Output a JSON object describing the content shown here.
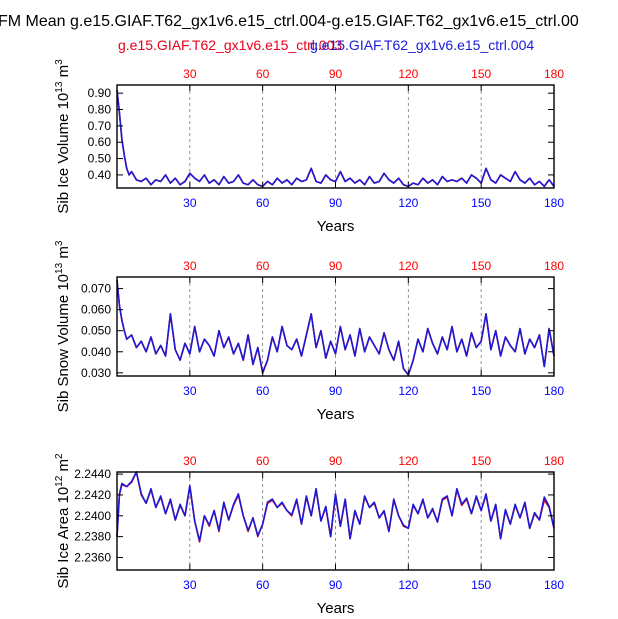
{
  "title": "FM Mean g.e15.GIAF.T62_gx1v6.e15_ctrl.004-g.e15.GIAF.T62_gx1v6.e15_ctrl.00",
  "legend": {
    "series_a": "g.e15.GIAF.T62_gx1v6.e15_ctrl.003",
    "series_b": "g.e15.GIAF.T62_gx1v6.e15_ctrl.004"
  },
  "colors": {
    "series_a": "#e8001c",
    "series_b": "#1b1bd6",
    "top_ticks": "#ff0000",
    "bottom_ticks": "#0000ff"
  },
  "chart_data": [
    {
      "type": "line",
      "title": "",
      "xlabel": "Years",
      "ylabel_prefix": "Sib Ice Volume 10",
      "ylabel_exp": "13",
      "ylabel_unit": " m",
      "ylabel_unit_exp": "3",
      "xlim": [
        0,
        180
      ],
      "ylim": [
        0.32,
        0.95
      ],
      "xticks": [
        30,
        60,
        90,
        120,
        150,
        180
      ],
      "yticks": [
        0.4,
        0.5,
        0.6,
        0.7,
        0.8,
        0.9
      ],
      "ytick_labels": [
        "0.40",
        "0.50",
        "0.60",
        "0.70",
        "0.80",
        "0.90"
      ],
      "x": [
        0,
        1,
        2,
        3,
        4,
        5,
        6,
        8,
        10,
        12,
        14,
        16,
        18,
        20,
        22,
        24,
        26,
        28,
        30,
        32,
        34,
        36,
        38,
        40,
        42,
        44,
        46,
        48,
        50,
        52,
        54,
        56,
        58,
        60,
        62,
        64,
        66,
        68,
        70,
        72,
        74,
        76,
        78,
        80,
        82,
        84,
        86,
        88,
        90,
        92,
        94,
        96,
        98,
        100,
        102,
        104,
        106,
        108,
        110,
        112,
        114,
        116,
        118,
        120,
        122,
        124,
        126,
        128,
        130,
        132,
        134,
        136,
        138,
        140,
        142,
        144,
        146,
        148,
        150,
        152,
        154,
        156,
        158,
        160,
        162,
        164,
        166,
        168,
        170,
        172,
        174,
        176,
        178,
        180
      ],
      "series": [
        {
          "name": "g.e15.GIAF.T62_gx1v6.e15_ctrl.003",
          "values": [
            0.92,
            0.78,
            0.62,
            0.52,
            0.44,
            0.4,
            0.42,
            0.37,
            0.36,
            0.38,
            0.34,
            0.37,
            0.36,
            0.4,
            0.35,
            0.38,
            0.34,
            0.36,
            0.41,
            0.38,
            0.36,
            0.4,
            0.35,
            0.37,
            0.34,
            0.39,
            0.35,
            0.36,
            0.4,
            0.35,
            0.34,
            0.37,
            0.34,
            0.33,
            0.36,
            0.34,
            0.38,
            0.35,
            0.37,
            0.34,
            0.38,
            0.36,
            0.37,
            0.44,
            0.36,
            0.35,
            0.4,
            0.37,
            0.36,
            0.42,
            0.36,
            0.38,
            0.35,
            0.37,
            0.34,
            0.39,
            0.35,
            0.36,
            0.41,
            0.37,
            0.35,
            0.38,
            0.34,
            0.33,
            0.35,
            0.34,
            0.38,
            0.35,
            0.37,
            0.34,
            0.39,
            0.36,
            0.37,
            0.36,
            0.38,
            0.35,
            0.4,
            0.38,
            0.35,
            0.44,
            0.37,
            0.35,
            0.4,
            0.38,
            0.36,
            0.42,
            0.37,
            0.35,
            0.38,
            0.34,
            0.36,
            0.33,
            0.37,
            0.33
          ]
        },
        {
          "name": "g.e15.GIAF.T62_gx1v6.e15_ctrl.004",
          "values": [
            0.92,
            0.78,
            0.62,
            0.52,
            0.44,
            0.4,
            0.42,
            0.37,
            0.36,
            0.38,
            0.34,
            0.37,
            0.36,
            0.4,
            0.35,
            0.38,
            0.34,
            0.36,
            0.41,
            0.38,
            0.36,
            0.4,
            0.35,
            0.37,
            0.34,
            0.39,
            0.35,
            0.36,
            0.4,
            0.35,
            0.34,
            0.37,
            0.34,
            0.33,
            0.36,
            0.34,
            0.38,
            0.35,
            0.37,
            0.34,
            0.38,
            0.36,
            0.37,
            0.44,
            0.36,
            0.35,
            0.4,
            0.37,
            0.36,
            0.42,
            0.36,
            0.38,
            0.35,
            0.37,
            0.34,
            0.39,
            0.35,
            0.36,
            0.41,
            0.37,
            0.35,
            0.38,
            0.34,
            0.33,
            0.35,
            0.34,
            0.38,
            0.35,
            0.37,
            0.34,
            0.39,
            0.36,
            0.37,
            0.36,
            0.38,
            0.35,
            0.4,
            0.38,
            0.35,
            0.44,
            0.37,
            0.35,
            0.4,
            0.38,
            0.36,
            0.42,
            0.37,
            0.35,
            0.38,
            0.34,
            0.36,
            0.33,
            0.37,
            0.33
          ]
        }
      ]
    },
    {
      "type": "line",
      "title": "",
      "xlabel": "Years",
      "ylabel_prefix": "Sib Snow Volume 10",
      "ylabel_exp": "13",
      "ylabel_unit": " m",
      "ylabel_unit_exp": "3",
      "xlim": [
        0,
        180
      ],
      "ylim": [
        0.0285,
        0.0755
      ],
      "xticks": [
        30,
        60,
        90,
        120,
        150,
        180
      ],
      "yticks": [
        0.03,
        0.04,
        0.05,
        0.06,
        0.07
      ],
      "ytick_labels": [
        "0.030",
        "0.040",
        "0.050",
        "0.060",
        "0.070"
      ],
      "x": [
        0,
        1,
        2,
        3,
        4,
        6,
        8,
        10,
        12,
        14,
        16,
        18,
        20,
        22,
        24,
        26,
        28,
        30,
        32,
        34,
        36,
        38,
        40,
        42,
        44,
        46,
        48,
        50,
        52,
        54,
        56,
        58,
        60,
        62,
        64,
        66,
        68,
        70,
        72,
        74,
        76,
        78,
        80,
        82,
        84,
        86,
        88,
        90,
        92,
        94,
        96,
        98,
        100,
        102,
        104,
        106,
        108,
        110,
        112,
        114,
        116,
        118,
        120,
        122,
        124,
        126,
        128,
        130,
        132,
        134,
        136,
        138,
        140,
        142,
        144,
        146,
        148,
        150,
        152,
        154,
        156,
        158,
        160,
        162,
        164,
        166,
        168,
        170,
        172,
        174,
        176,
        178,
        180
      ],
      "series": [
        {
          "name": "g.e15.GIAF.T62_gx1v6.e15_ctrl.003",
          "values": [
            0.074,
            0.062,
            0.055,
            0.05,
            0.046,
            0.048,
            0.042,
            0.045,
            0.04,
            0.047,
            0.039,
            0.043,
            0.038,
            0.058,
            0.041,
            0.036,
            0.044,
            0.039,
            0.052,
            0.04,
            0.046,
            0.043,
            0.038,
            0.05,
            0.042,
            0.047,
            0.039,
            0.044,
            0.036,
            0.048,
            0.034,
            0.042,
            0.03,
            0.036,
            0.047,
            0.04,
            0.052,
            0.043,
            0.041,
            0.046,
            0.038,
            0.048,
            0.058,
            0.042,
            0.05,
            0.037,
            0.045,
            0.039,
            0.052,
            0.041,
            0.048,
            0.038,
            0.051,
            0.04,
            0.047,
            0.043,
            0.039,
            0.049,
            0.041,
            0.036,
            0.045,
            0.032,
            0.029,
            0.036,
            0.046,
            0.04,
            0.051,
            0.044,
            0.039,
            0.047,
            0.041,
            0.052,
            0.04,
            0.046,
            0.038,
            0.049,
            0.042,
            0.045,
            0.058,
            0.041,
            0.05,
            0.038,
            0.047,
            0.043,
            0.04,
            0.051,
            0.039,
            0.046,
            0.042,
            0.048,
            0.033,
            0.051,
            0.038
          ]
        },
        {
          "name": "g.e15.GIAF.T62_gx1v6.e15_ctrl.004",
          "values": [
            0.074,
            0.062,
            0.055,
            0.05,
            0.046,
            0.048,
            0.042,
            0.045,
            0.04,
            0.047,
            0.039,
            0.043,
            0.038,
            0.058,
            0.041,
            0.036,
            0.044,
            0.039,
            0.052,
            0.04,
            0.046,
            0.043,
            0.038,
            0.05,
            0.042,
            0.047,
            0.039,
            0.044,
            0.036,
            0.048,
            0.034,
            0.042,
            0.03,
            0.036,
            0.047,
            0.04,
            0.052,
            0.043,
            0.041,
            0.046,
            0.038,
            0.048,
            0.058,
            0.042,
            0.05,
            0.037,
            0.045,
            0.039,
            0.052,
            0.041,
            0.048,
            0.038,
            0.051,
            0.04,
            0.047,
            0.043,
            0.039,
            0.049,
            0.041,
            0.036,
            0.045,
            0.032,
            0.029,
            0.036,
            0.046,
            0.04,
            0.051,
            0.044,
            0.039,
            0.047,
            0.041,
            0.052,
            0.04,
            0.046,
            0.038,
            0.049,
            0.042,
            0.045,
            0.058,
            0.041,
            0.05,
            0.038,
            0.047,
            0.043,
            0.04,
            0.051,
            0.039,
            0.046,
            0.042,
            0.048,
            0.033,
            0.051,
            0.038
          ]
        }
      ]
    },
    {
      "type": "line",
      "title": "",
      "xlabel": "Years",
      "ylabel_prefix": "Sib Ice Area 10",
      "ylabel_exp": "12",
      "ylabel_unit": " m",
      "ylabel_unit_exp": "2",
      "xlim": [
        0,
        180
      ],
      "ylim": [
        2.2348,
        2.2442
      ],
      "xticks": [
        30,
        60,
        90,
        120,
        150,
        180
      ],
      "yticks": [
        2.236,
        2.238,
        2.24,
        2.242,
        2.244
      ],
      "ytick_labels": [
        "2.2360",
        "2.2380",
        "2.2400",
        "2.2420",
        "2.2440"
      ],
      "x": [
        0,
        1,
        2,
        4,
        6,
        8,
        10,
        12,
        14,
        16,
        18,
        20,
        22,
        24,
        26,
        28,
        30,
        32,
        34,
        36,
        38,
        40,
        42,
        44,
        46,
        48,
        50,
        52,
        54,
        56,
        58,
        60,
        62,
        64,
        66,
        68,
        70,
        72,
        74,
        76,
        78,
        80,
        82,
        84,
        86,
        88,
        90,
        92,
        94,
        96,
        98,
        100,
        102,
        104,
        106,
        108,
        110,
        112,
        114,
        116,
        118,
        120,
        122,
        124,
        126,
        128,
        130,
        132,
        134,
        136,
        138,
        140,
        142,
        144,
        146,
        148,
        150,
        152,
        154,
        156,
        158,
        160,
        162,
        164,
        166,
        168,
        170,
        172,
        174,
        176,
        178,
        180
      ],
      "series": [
        {
          "name": "g.e15.GIAF.T62_gx1v6.e15_ctrl.003",
          "values": [
            2.238,
            2.242,
            2.243,
            2.2428,
            2.2432,
            2.2442,
            2.242,
            2.2412,
            2.2425,
            2.2408,
            2.2418,
            2.2402,
            2.2415,
            2.2396,
            2.241,
            2.24,
            2.2428,
            2.2395,
            2.2375,
            2.24,
            2.239,
            2.2405,
            2.2385,
            2.2412,
            2.2396,
            2.241,
            2.242,
            2.24,
            2.2385,
            2.2398,
            2.238,
            2.2392,
            2.2412,
            2.2415,
            2.2408,
            2.2412,
            2.2405,
            2.24,
            2.2415,
            2.2392,
            2.2418,
            2.24,
            2.2425,
            2.2395,
            2.2408,
            2.238,
            2.242,
            2.239,
            2.2415,
            2.2378,
            2.2404,
            2.2392,
            2.2418,
            2.2408,
            2.2412,
            2.2398,
            2.2404,
            2.2385,
            2.2415,
            2.24,
            2.239,
            2.2388,
            2.241,
            2.2402,
            2.2415,
            2.2398,
            2.2406,
            2.2394,
            2.2415,
            2.2418,
            2.24,
            2.2425,
            2.241,
            2.2416,
            2.2402,
            2.2418,
            2.2405,
            2.242,
            2.2395,
            2.241,
            2.2378,
            2.2405,
            2.2392,
            2.241,
            2.2398,
            2.2412,
            2.2388,
            2.2402,
            2.2396,
            2.2415,
            2.2408,
            2.2388
          ]
        },
        {
          "name": "g.e15.GIAF.T62_gx1v6.e15_ctrl.004",
          "values": [
            2.238,
            2.2421,
            2.2431,
            2.2428,
            2.2433,
            2.2442,
            2.2421,
            2.2412,
            2.2426,
            2.2408,
            2.2419,
            2.2402,
            2.2416,
            2.2396,
            2.2411,
            2.24,
            2.2429,
            2.2395,
            2.2376,
            2.24,
            2.2391,
            2.2405,
            2.2386,
            2.2413,
            2.2396,
            2.2411,
            2.2421,
            2.24,
            2.2386,
            2.2398,
            2.2381,
            2.2392,
            2.2413,
            2.2416,
            2.2408,
            2.2413,
            2.2405,
            2.2401,
            2.2416,
            2.2392,
            2.2419,
            2.24,
            2.2426,
            2.2395,
            2.2409,
            2.238,
            2.2421,
            2.239,
            2.2416,
            2.2378,
            2.2405,
            2.2392,
            2.2419,
            2.2408,
            2.2413,
            2.2398,
            2.2405,
            2.2385,
            2.2416,
            2.24,
            2.2391,
            2.2388,
            2.2411,
            2.2402,
            2.2416,
            2.2398,
            2.2407,
            2.2394,
            2.2416,
            2.2419,
            2.24,
            2.2426,
            2.2411,
            2.2417,
            2.2402,
            2.2419,
            2.2405,
            2.2421,
            2.2395,
            2.2411,
            2.2378,
            2.2406,
            2.2392,
            2.2411,
            2.2398,
            2.2413,
            2.2388,
            2.2403,
            2.2396,
            2.2418,
            2.2409,
            2.2388
          ]
        }
      ]
    }
  ]
}
